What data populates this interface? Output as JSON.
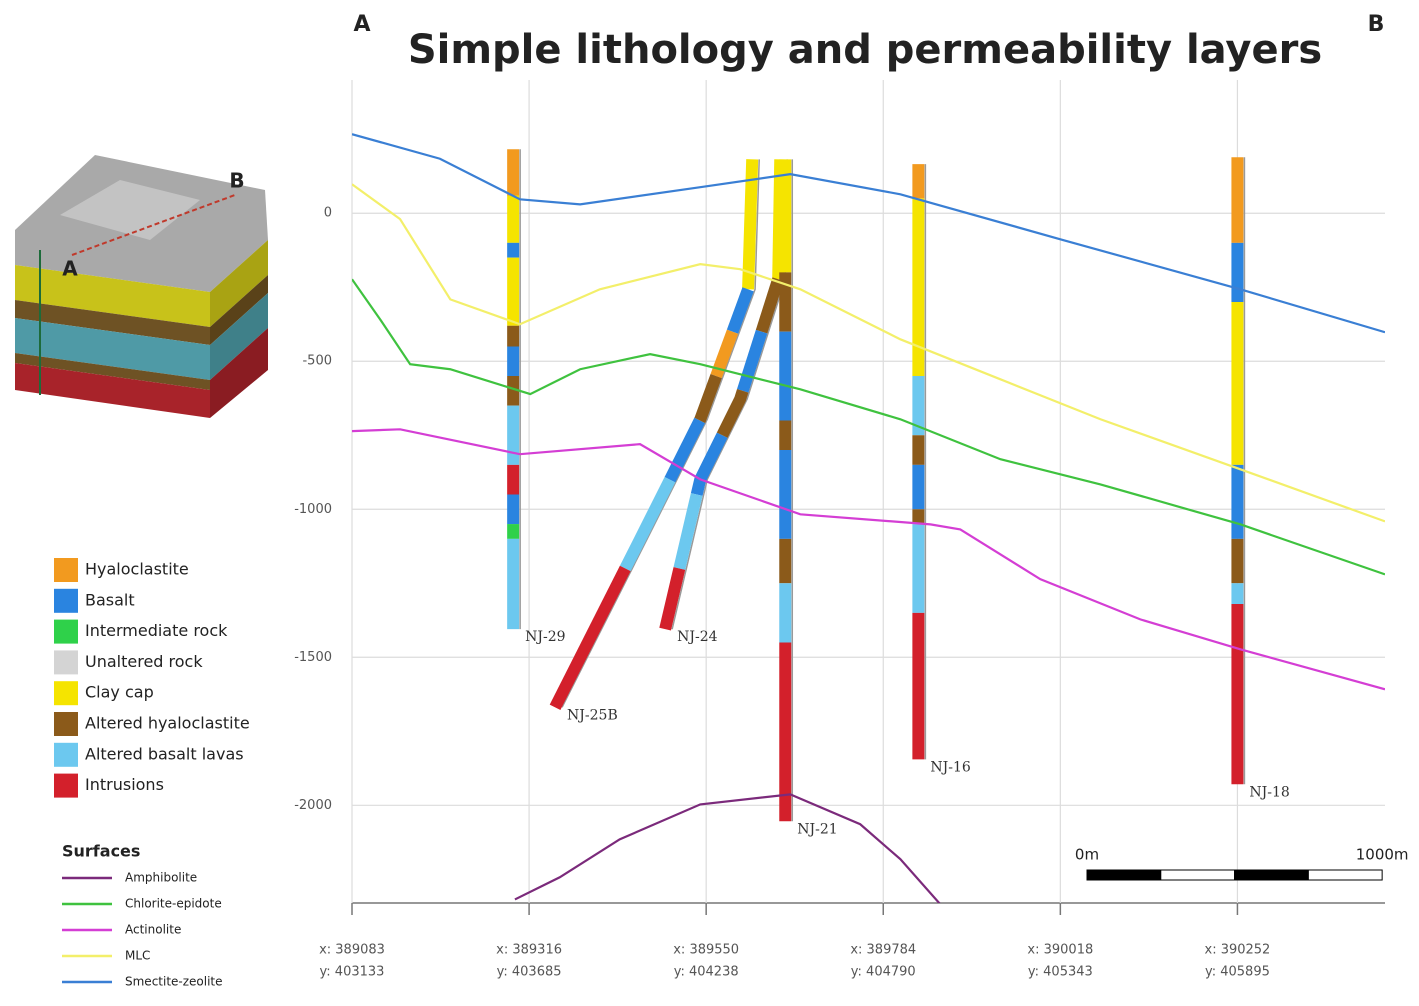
{
  "chart_data": {
    "type": "cross-section",
    "title": "Simple lithology and permeability layers",
    "corner_labels": [
      "A",
      "B"
    ],
    "inset_labels": [
      "A",
      "B"
    ],
    "xlim": [
      0,
      3500
    ],
    "ylim": [
      450,
      -2330
    ],
    "xticks": [
      0,
      600,
      1200,
      1800,
      2400,
      3000
    ],
    "xtick_labels": [
      [
        "x: 389083",
        "y: 403133"
      ],
      [
        "x: 389316",
        "y: 403685"
      ],
      [
        "x: 389550",
        "y: 404238"
      ],
      [
        "x: 389784",
        "y: 404790"
      ],
      [
        "x: 390018",
        "y: 405343"
      ],
      [
        "x: 390252",
        "y: 405895"
      ]
    ],
    "yticks": [
      0,
      -500,
      -1000,
      -1500,
      -2000
    ],
    "grid": true,
    "lithologies": [
      {
        "name": "Hyaloclastite",
        "color": "#f29a1f"
      },
      {
        "name": "Basalt",
        "color": "#2a84e0"
      },
      {
        "name": "Intermediate rock",
        "color": "#2fd14a"
      },
      {
        "name": "Unaltered rock",
        "color": "#d4d4d4"
      },
      {
        "name": "Clay cap",
        "color": "#f5e400"
      },
      {
        "name": "Altered hyaloclastite",
        "color": "#8b5a1a"
      },
      {
        "name": "Altered basalt lavas",
        "color": "#6cc8ef"
      },
      {
        "name": "Intrusions",
        "color": "#d3202b"
      }
    ],
    "surfaces_title": "Surfaces",
    "series": [
      {
        "name": "Amphibolite",
        "color": "#7b2a7b",
        "x": [
          552,
          704,
          907,
          1180,
          1485,
          1722,
          1858,
          1993
        ],
        "values": [
          -2318,
          -2243,
          -2115,
          -1997,
          -1963,
          -2064,
          -2182,
          -2334
        ]
      },
      {
        "name": "Chlorite-epidote",
        "color": "#3fc23f",
        "x": [
          0,
          95,
          197,
          333,
          604,
          773,
          1010,
          1180,
          1519,
          1858,
          2197,
          2536,
          3010,
          3500
        ],
        "values": [
          -223,
          -358,
          -510,
          -527,
          -611,
          -527,
          -476,
          -510,
          -595,
          -696,
          -831,
          -916,
          -1051,
          -1220
        ]
      },
      {
        "name": "Actinolite",
        "color": "#d43ed4",
        "x": [
          0,
          163,
          569,
          976,
          1180,
          1519,
          1960,
          2061,
          2332,
          2671,
          3010,
          3500
        ],
        "values": [
          -736,
          -730,
          -814,
          -780,
          -899,
          -1017,
          -1051,
          -1068,
          -1236,
          -1372,
          -1473,
          -1608
        ]
      },
      {
        "name": "MLC",
        "color": "#f3ef6a",
        "x": [
          0,
          163,
          333,
          569,
          840,
          1180,
          1315,
          1519,
          1858,
          2197,
          2536,
          3010,
          3500
        ],
        "values": [
          98,
          -20,
          -291,
          -375,
          -257,
          -172,
          -189,
          -257,
          -426,
          -561,
          -696,
          -865,
          -1041
        ]
      },
      {
        "name": "Smectite-zeolite",
        "color": "#3a7fd4",
        "x": [
          0,
          298,
          569,
          773,
          1180,
          1485,
          1858,
          2400,
          3010,
          3500
        ],
        "values": [
          267,
          184,
          47,
          30,
          88,
          132,
          64,
          -88,
          -257,
          -402
        ]
      }
    ],
    "wells": [
      {
        "name": "NJ-29",
        "trajectory": {
          "x": [
            546,
            546
          ],
          "depth": [
            216,
            -1405
          ]
        },
        "intervals": [
          [
            0,
            216,
            60
          ],
          [
            4,
            60,
            -100
          ],
          [
            1,
            -100,
            -150
          ],
          [
            4,
            -150,
            -380
          ],
          [
            5,
            -380,
            -450
          ],
          [
            1,
            -450,
            -550
          ],
          [
            5,
            -550,
            -650
          ],
          [
            6,
            -650,
            -850
          ],
          [
            7,
            -850,
            -950
          ],
          [
            1,
            -950,
            -1050
          ],
          [
            2,
            -1050,
            -1100
          ],
          [
            6,
            -1100,
            -1405
          ]
        ]
      },
      {
        "name": "NJ-25B",
        "trajectory": {
          "x": [
            1356,
            1342,
            1180,
            976,
            688
          ],
          "depth": [
            182,
            -257,
            -696,
            -1101,
            -1669
          ]
        },
        "intervals": [
          [
            4,
            182,
            -257
          ],
          [
            1,
            -257,
            -400
          ],
          [
            0,
            -400,
            -550
          ],
          [
            5,
            -550,
            -700
          ],
          [
            1,
            -700,
            -900
          ],
          [
            6,
            -900,
            -1200
          ],
          [
            7,
            -1200,
            -1669
          ]
        ]
      },
      {
        "name": "NJ-24",
        "trajectory": {
          "x": [
            1451,
            1444,
            1315,
            1180,
            1061
          ],
          "depth": [
            182,
            -223,
            -628,
            -899,
            -1405
          ]
        },
        "intervals": [
          [
            4,
            182,
            -223
          ],
          [
            5,
            -223,
            -400
          ],
          [
            1,
            -400,
            -600
          ],
          [
            5,
            -600,
            -750
          ],
          [
            1,
            -750,
            -950
          ],
          [
            6,
            -950,
            -1200
          ],
          [
            7,
            -1200,
            -1405
          ]
        ]
      },
      {
        "name": "NJ-21",
        "trajectory": {
          "x": [
            1468,
            1468
          ],
          "depth": [
            182,
            -2054
          ]
        },
        "intervals": [
          [
            4,
            182,
            -200
          ],
          [
            5,
            -200,
            -400
          ],
          [
            1,
            -400,
            -700
          ],
          [
            5,
            -700,
            -800
          ],
          [
            1,
            -800,
            -1100
          ],
          [
            5,
            -1100,
            -1250
          ],
          [
            6,
            -1250,
            -1450
          ],
          [
            7,
            -1450,
            -2054
          ]
        ]
      },
      {
        "name": "NJ-16",
        "trajectory": {
          "x": [
            1919,
            1919
          ],
          "depth": [
            166,
            -1845
          ]
        },
        "intervals": [
          [
            0,
            166,
            50
          ],
          [
            4,
            50,
            -550
          ],
          [
            6,
            -550,
            -750
          ],
          [
            5,
            -750,
            -850
          ],
          [
            1,
            -850,
            -1000
          ],
          [
            5,
            -1000,
            -1050
          ],
          [
            6,
            -1050,
            -1350
          ],
          [
            7,
            -1350,
            -1845
          ]
        ]
      },
      {
        "name": "NJ-18",
        "trajectory": {
          "x": [
            3000,
            3000
          ],
          "depth": [
            189,
            -1929
          ]
        },
        "intervals": [
          [
            0,
            189,
            -100
          ],
          [
            1,
            -100,
            -300
          ],
          [
            4,
            -300,
            -850
          ],
          [
            1,
            -850,
            -1100
          ],
          [
            5,
            -1100,
            -1250
          ],
          [
            6,
            -1250,
            -1320
          ],
          [
            7,
            -1320,
            -1929
          ]
        ]
      }
    ],
    "scale_bar": {
      "length": 1000,
      "labels": [
        "0m",
        "1000m"
      ]
    }
  }
}
